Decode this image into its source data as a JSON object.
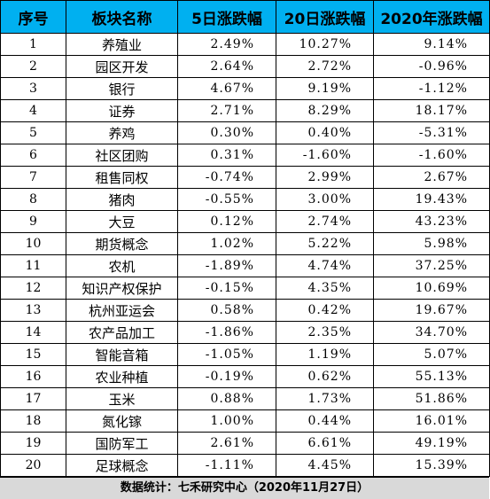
{
  "headers": [
    "序号",
    "板块名称",
    "5日涨跌幅",
    "20日涨跌幅",
    "2020年涨跌幅"
  ],
  "rows": [
    [
      "1",
      "养殖业",
      "2.49%",
      "10.27%",
      "9.14%"
    ],
    [
      "2",
      "园区开发",
      "2.64%",
      "2.72%",
      "-0.96%"
    ],
    [
      "3",
      "银行",
      "4.67%",
      "9.19%",
      "-1.12%"
    ],
    [
      "4",
      "证券",
      "2.71%",
      "8.29%",
      "18.17%"
    ],
    [
      "5",
      "养鸡",
      "0.30%",
      "0.40%",
      "-5.31%"
    ],
    [
      "6",
      "社区团购",
      "0.31%",
      "-1.60%",
      "-1.60%"
    ],
    [
      "7",
      "租售同权",
      "-0.74%",
      "2.99%",
      "2.67%"
    ],
    [
      "8",
      "猪肉",
      "-0.55%",
      "3.00%",
      "19.43%"
    ],
    [
      "9",
      "大豆",
      "0.12%",
      "2.74%",
      "43.23%"
    ],
    [
      "10",
      "期货概念",
      "1.02%",
      "5.22%",
      "5.98%"
    ],
    [
      "11",
      "农机",
      "-1.89%",
      "4.74%",
      "37.25%"
    ],
    [
      "12",
      "知识产权保护",
      "-0.15%",
      "4.35%",
      "10.69%"
    ],
    [
      "13",
      "杭州亚运会",
      "0.58%",
      "0.42%",
      "19.67%"
    ],
    [
      "14",
      "农产品加工",
      "-1.86%",
      "2.35%",
      "34.70%"
    ],
    [
      "15",
      "智能音箱",
      "-1.05%",
      "1.19%",
      "5.07%"
    ],
    [
      "16",
      "农业种植",
      "-0.19%",
      "0.62%",
      "55.13%"
    ],
    [
      "17",
      "玉米",
      "0.88%",
      "1.73%",
      "51.86%"
    ],
    [
      "18",
      "氮化镓",
      "1.00%",
      "0.44%",
      "16.01%"
    ],
    [
      "19",
      "国防军工",
      "2.61%",
      "6.61%",
      "49.19%"
    ],
    [
      "20",
      "足球概念",
      "-1.11%",
      "4.45%",
      "15.39%"
    ]
  ],
  "footer": "数据统计：七禾研究中心（2020年11月27日）",
  "colors": {
    "header_bg": "#00b0f0",
    "footer_bg": "#d9d9d9"
  }
}
